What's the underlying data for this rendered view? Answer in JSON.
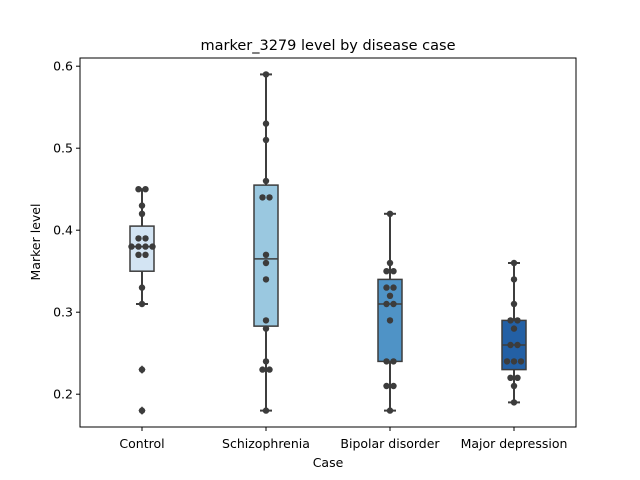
{
  "chart_data": {
    "type": "box",
    "title": "marker_3279 level by disease case",
    "xlabel": "Case",
    "ylabel": "Marker level",
    "ylim": [
      0.16,
      0.61
    ],
    "yticks": [
      0.2,
      0.3,
      0.4,
      0.5,
      0.6
    ],
    "ytick_labels": [
      "0.2",
      "0.3",
      "0.4",
      "0.5",
      "0.6"
    ],
    "grid": false,
    "categories": [
      "Control",
      "Schizophrenia",
      "Bipolar disorder",
      "Major depression"
    ],
    "colors": [
      "#d3e4f3",
      "#9ac8e0",
      "#4f93c6",
      "#2360a5"
    ],
    "outlier_color": "#3d3d3d",
    "point_color": "#3c3c3c",
    "series": [
      {
        "category": "Control",
        "box": {
          "whislo": 0.31,
          "q1": 0.35,
          "median": 0.38,
          "q3": 0.405,
          "whishi": 0.45
        },
        "outliers": [
          0.23,
          0.18
        ],
        "points": [
          0.45,
          0.45,
          0.43,
          0.42,
          0.39,
          0.39,
          0.38,
          0.38,
          0.38,
          0.38,
          0.37,
          0.37,
          0.33,
          0.31,
          0.23,
          0.18
        ]
      },
      {
        "category": "Schizophrenia",
        "box": {
          "whislo": 0.18,
          "q1": 0.283,
          "median": 0.365,
          "q3": 0.455,
          "whishi": 0.59
        },
        "outliers": [],
        "points": [
          0.59,
          0.53,
          0.51,
          0.46,
          0.44,
          0.44,
          0.37,
          0.36,
          0.34,
          0.29,
          0.28,
          0.24,
          0.23,
          0.23,
          0.18
        ]
      },
      {
        "category": "Bipolar disorder",
        "box": {
          "whislo": 0.18,
          "q1": 0.24,
          "median": 0.31,
          "q3": 0.34,
          "whishi": 0.42
        },
        "outliers": [],
        "points": [
          0.42,
          0.36,
          0.35,
          0.35,
          0.33,
          0.33,
          0.32,
          0.31,
          0.31,
          0.29,
          0.24,
          0.24,
          0.21,
          0.21,
          0.18
        ]
      },
      {
        "category": "Major depression",
        "box": {
          "whislo": 0.19,
          "q1": 0.23,
          "median": 0.26,
          "q3": 0.29,
          "whishi": 0.36
        },
        "outliers": [],
        "points": [
          0.36,
          0.34,
          0.31,
          0.29,
          0.29,
          0.28,
          0.26,
          0.26,
          0.24,
          0.24,
          0.24,
          0.22,
          0.22,
          0.21,
          0.19
        ]
      }
    ]
  }
}
